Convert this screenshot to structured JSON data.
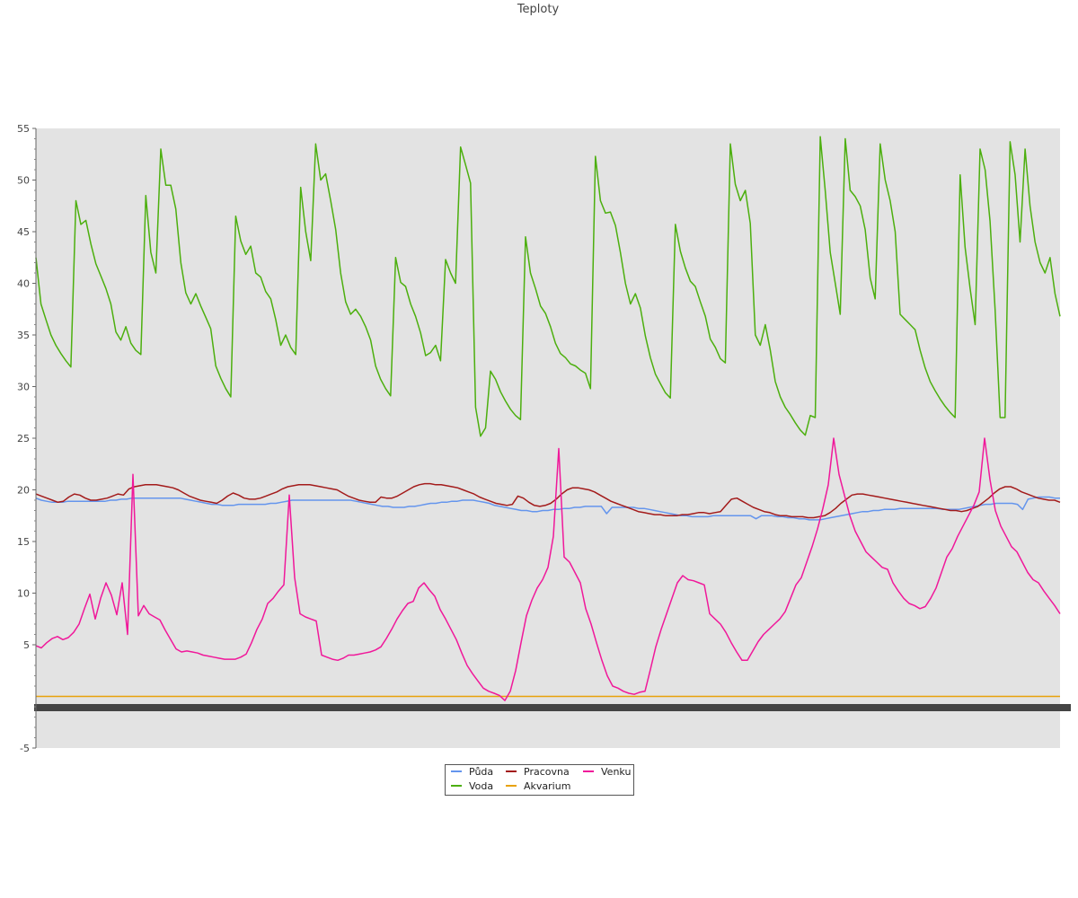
{
  "chart_data": {
    "type": "line",
    "title": "Teploty",
    "xlabel": "",
    "ylabel": "",
    "ylim": [
      -5,
      55
    ],
    "yticks": [
      -5,
      5,
      10,
      15,
      20,
      25,
      30,
      35,
      40,
      45,
      50,
      55
    ],
    "x_count": 200,
    "grid": false,
    "legend_position": "bottom-center",
    "series": [
      {
        "name": "Půda",
        "color": "#6495ed",
        "values": [
          19.2,
          19,
          18.9,
          18.8,
          18.8,
          18.8,
          18.9,
          18.9,
          18.9,
          18.9,
          18.9,
          18.9,
          18.9,
          18.9,
          19,
          19,
          19.1,
          19.1,
          19.2,
          19.2,
          19.2,
          19.2,
          19.2,
          19.2,
          19.2,
          19.2,
          19.2,
          19.2,
          19.1,
          19,
          18.9,
          18.8,
          18.7,
          18.6,
          18.6,
          18.5,
          18.5,
          18.5,
          18.6,
          18.6,
          18.6,
          18.6,
          18.6,
          18.6,
          18.7,
          18.7,
          18.8,
          18.9,
          19,
          19,
          19,
          19,
          19,
          19,
          19,
          19,
          19,
          19,
          19,
          19,
          18.9,
          18.8,
          18.7,
          18.6,
          18.5,
          18.4,
          18.4,
          18.3,
          18.3,
          18.3,
          18.4,
          18.4,
          18.5,
          18.6,
          18.7,
          18.7,
          18.8,
          18.8,
          18.9,
          18.9,
          19,
          19,
          19,
          18.9,
          18.8,
          18.7,
          18.5,
          18.4,
          18.3,
          18.2,
          18.1,
          18,
          18,
          17.9,
          17.9,
          18,
          18,
          18.1,
          18.1,
          18.2,
          18.2,
          18.3,
          18.3,
          18.4,
          18.4,
          18.4,
          18.4,
          17.7,
          18.3,
          18.3,
          18.3,
          18.3,
          18.3,
          18.2,
          18.2,
          18.1,
          18,
          17.9,
          17.8,
          17.7,
          17.6,
          17.5,
          17.5,
          17.4,
          17.4,
          17.4,
          17.4,
          17.5,
          17.5,
          17.5,
          17.5,
          17.5,
          17.5,
          17.5,
          17.5,
          17.2,
          17.5,
          17.5,
          17.5,
          17.4,
          17.4,
          17.3,
          17.3,
          17.2,
          17.2,
          17.1,
          17.1,
          17.1,
          17.2,
          17.3,
          17.4,
          17.5,
          17.6,
          17.7,
          17.8,
          17.9,
          17.9,
          18,
          18,
          18.1,
          18.1,
          18.1,
          18.2,
          18.2,
          18.2,
          18.2,
          18.2,
          18.2,
          18.2,
          18.2,
          18.1,
          18.1,
          18.1,
          18.1,
          18.2,
          18.3,
          18.4,
          18.5,
          18.6,
          18.6,
          18.7,
          18.7,
          18.7,
          18.7,
          18.6,
          18.1,
          19.1,
          19.2,
          19.3,
          19.3,
          19.3,
          19.2,
          19.2
        ]
      },
      {
        "name": "Pracovna",
        "color": "#a31b1b",
        "values": [
          19.6,
          19.4,
          19.2,
          19,
          18.8,
          18.9,
          19.3,
          19.6,
          19.5,
          19.2,
          19,
          19,
          19.1,
          19.2,
          19.4,
          19.6,
          19.5,
          20.1,
          20.3,
          20.4,
          20.5,
          20.5,
          20.5,
          20.4,
          20.3,
          20.2,
          20,
          19.7,
          19.4,
          19.2,
          19,
          18.9,
          18.8,
          18.7,
          19,
          19.4,
          19.7,
          19.5,
          19.2,
          19.1,
          19.1,
          19.2,
          19.4,
          19.6,
          19.8,
          20.1,
          20.3,
          20.4,
          20.5,
          20.5,
          20.5,
          20.4,
          20.3,
          20.2,
          20.1,
          20,
          19.7,
          19.4,
          19.2,
          19,
          18.9,
          18.8,
          18.8,
          19.3,
          19.2,
          19.2,
          19.4,
          19.7,
          20,
          20.3,
          20.5,
          20.6,
          20.6,
          20.5,
          20.5,
          20.4,
          20.3,
          20.2,
          20,
          19.8,
          19.6,
          19.3,
          19.1,
          18.9,
          18.7,
          18.6,
          18.5,
          18.6,
          19.4,
          19.2,
          18.8,
          18.5,
          18.4,
          18.5,
          18.7,
          19.1,
          19.6,
          20,
          20.2,
          20.2,
          20.1,
          20,
          19.8,
          19.5,
          19.2,
          18.9,
          18.7,
          18.5,
          18.3,
          18.1,
          17.9,
          17.8,
          17.7,
          17.6,
          17.6,
          17.5,
          17.5,
          17.5,
          17.6,
          17.6,
          17.7,
          17.8,
          17.8,
          17.7,
          17.8,
          17.9,
          18.5,
          19.1,
          19.2,
          18.9,
          18.6,
          18.3,
          18.1,
          17.9,
          17.8,
          17.6,
          17.5,
          17.5,
          17.4,
          17.4,
          17.4,
          17.3,
          17.3,
          17.4,
          17.5,
          17.8,
          18.2,
          18.7,
          19.1,
          19.5,
          19.6,
          19.6,
          19.5,
          19.4,
          19.3,
          19.2,
          19.1,
          19,
          18.9,
          18.8,
          18.7,
          18.6,
          18.5,
          18.4,
          18.3,
          18.2,
          18.1,
          18,
          18,
          17.9,
          18,
          18.2,
          18.4,
          18.8,
          19.2,
          19.7,
          20.1,
          20.3,
          20.3,
          20.1,
          19.8,
          19.6,
          19.4,
          19.2,
          19.1,
          19,
          19,
          18.8
        ]
      },
      {
        "name": "Venku",
        "color": "#f0189a",
        "values": [
          4.9,
          4.7,
          5.2,
          5.6,
          5.8,
          5.5,
          5.7,
          6.2,
          7,
          8.5,
          9.9,
          7.5,
          9.5,
          11,
          9.8,
          7.9,
          11,
          6,
          21.5,
          7.8,
          8.8,
          8,
          7.7,
          7.4,
          6.4,
          5.5,
          4.6,
          4.3,
          4.4,
          4.3,
          4.2,
          4,
          3.9,
          3.8,
          3.7,
          3.6,
          3.6,
          3.6,
          3.8,
          4.1,
          5.2,
          6.5,
          7.5,
          9,
          9.5,
          10.2,
          10.8,
          19.5,
          11.5,
          8,
          7.7,
          7.5,
          7.3,
          4,
          3.8,
          3.6,
          3.5,
          3.7,
          4,
          4,
          4.1,
          4.2,
          4.3,
          4.5,
          4.8,
          5.6,
          6.5,
          7.5,
          8.3,
          9,
          9.2,
          10.5,
          11,
          10.3,
          9.7,
          8.4,
          7.5,
          6.5,
          5.5,
          4.2,
          3,
          2.2,
          1.5,
          0.8,
          0.5,
          0.3,
          0.1,
          -0.4,
          0.5,
          2.5,
          5.2,
          7.8,
          9.3,
          10.5,
          11.3,
          12.5,
          15.5,
          24,
          13.5,
          13,
          12,
          11,
          8.5,
          7,
          5.2,
          3.5,
          2,
          1,
          0.8,
          0.5,
          0.3,
          0.2,
          0.4,
          0.5,
          2.6,
          4.8,
          6.5,
          8,
          9.5,
          11,
          11.7,
          11.3,
          11.2,
          11,
          10.8,
          8,
          7.5,
          7,
          6.2,
          5.2,
          4.3,
          3.5,
          3.5,
          4.4,
          5.3,
          6,
          6.5,
          7,
          7.5,
          8.2,
          9.5,
          10.8,
          11.5,
          13,
          14.5,
          16.2,
          18.2,
          20.5,
          25,
          21.5,
          19.5,
          17.5,
          16,
          15,
          14,
          13.5,
          13,
          12.5,
          12.3,
          11,
          10.2,
          9.5,
          9,
          8.8,
          8.5,
          8.7,
          9.5,
          10.5,
          12,
          13.5,
          14.3,
          15.5,
          16.5,
          17.5,
          18.5,
          19.8,
          25,
          21,
          18,
          16.5,
          15.5,
          14.5,
          14,
          13,
          12,
          11.3,
          11,
          10.2,
          9.5,
          8.8,
          8
        ]
      },
      {
        "name": "Voda",
        "color": "#4caf0e",
        "values": [
          42.5,
          38,
          36.5,
          35,
          34,
          33.2,
          32.5,
          31.9,
          48,
          45.7,
          46.1,
          43.8,
          41.9,
          40.7,
          39.5,
          38,
          35.3,
          34.5,
          35.8,
          34.2,
          33.5,
          33.1,
          48.5,
          43,
          41,
          53,
          49.5,
          49.5,
          47.2,
          42,
          39.1,
          38,
          39,
          37.8,
          36.7,
          35.6,
          32,
          30.8,
          29.8,
          29,
          46.5,
          44.1,
          42.8,
          43.6,
          41,
          40.6,
          39.2,
          38.5,
          36.5,
          34,
          35,
          33.8,
          33.1,
          49.3,
          45,
          42.2,
          53.5,
          50,
          50.6,
          48,
          45.2,
          41,
          38.2,
          37,
          37.5,
          36.8,
          35.8,
          34.5,
          32,
          30.7,
          29.8,
          29.1,
          42.5,
          40.1,
          39.7,
          38,
          36.8,
          35.2,
          33,
          33.3,
          34,
          32.5,
          42.3,
          41,
          40,
          53.2,
          51.5,
          49.7,
          28,
          25.2,
          26,
          31.5,
          30.7,
          29.5,
          28.6,
          27.8,
          27.2,
          26.8,
          44.5,
          41,
          39.5,
          37.8,
          37.1,
          35.8,
          34.2,
          33.2,
          32.8,
          32.2,
          32,
          31.6,
          31.3,
          29.8,
          52.3,
          48,
          46.8,
          46.9,
          45.6,
          43,
          40,
          38,
          39,
          37.6,
          34.9,
          32.8,
          31.2,
          30.3,
          29.4,
          28.9,
          45.7,
          43.1,
          41.5,
          40.2,
          39.7,
          38.2,
          36.8,
          34.6,
          33.8,
          32.7,
          32.3,
          53.5,
          49.6,
          48,
          49,
          45.8,
          35,
          34,
          36,
          33.5,
          30.5,
          29,
          28,
          27.3,
          26.5,
          25.8,
          25.3,
          27.2,
          27,
          54.2,
          49,
          43,
          40,
          37,
          54,
          49,
          48.4,
          47.5,
          45.2,
          40.5,
          38.5,
          53.5,
          50,
          48,
          45,
          37,
          36.5,
          36,
          35.5,
          33.5,
          31.8,
          30.5,
          29.6,
          28.8,
          28.1,
          27.5,
          27,
          50.5,
          43.5,
          39.5,
          36,
          53,
          51,
          46,
          37.5,
          27,
          27,
          53.7,
          50.5,
          44,
          53,
          47.5,
          44,
          42,
          41,
          42.5,
          39,
          36.8
        ]
      },
      {
        "name": "Akvarium",
        "color": "#e8a20a",
        "values": [
          0,
          0,
          0,
          0,
          0,
          0,
          0,
          0,
          0,
          0,
          0,
          0,
          0,
          0,
          0,
          0,
          0,
          0,
          0,
          0,
          0,
          0,
          0,
          0,
          0,
          0,
          0,
          0,
          0,
          0,
          0,
          0,
          0,
          0,
          0,
          0,
          0,
          0,
          0,
          0,
          0,
          0,
          0,
          0,
          0,
          0,
          0,
          0,
          0,
          0,
          0,
          0,
          0,
          0,
          0,
          0,
          0,
          0,
          0,
          0,
          0,
          0,
          0,
          0,
          0,
          0,
          0,
          0,
          0,
          0,
          0,
          0,
          0,
          0,
          0,
          0,
          0,
          0,
          0,
          0,
          0,
          0,
          0,
          0,
          0,
          0,
          0,
          0,
          0,
          0,
          0,
          0,
          0,
          0,
          0,
          0,
          0,
          0,
          0,
          0,
          0,
          0,
          0,
          0,
          0,
          0,
          0,
          0,
          0,
          0,
          0,
          0,
          0,
          0,
          0,
          0,
          0,
          0,
          0,
          0,
          0,
          0,
          0,
          0,
          0,
          0,
          0,
          0,
          0,
          0,
          0,
          0,
          0,
          0,
          0,
          0,
          0,
          0,
          0,
          0,
          0,
          0,
          0,
          0,
          0,
          0,
          0,
          0,
          0,
          0,
          0,
          0,
          0,
          0,
          0,
          0,
          0,
          0,
          0,
          0,
          0,
          0,
          0,
          0,
          0,
          0,
          0,
          0,
          0,
          0,
          0,
          0,
          0,
          0,
          0,
          0,
          0,
          0,
          0,
          0,
          0,
          0,
          0,
          0,
          0,
          0,
          0,
          0,
          0,
          0,
          0,
          0,
          0,
          0,
          0,
          0,
          0,
          0,
          0,
          0
        ]
      }
    ],
    "legend": [
      {
        "name": "Půda",
        "color": "#6495ed"
      },
      {
        "name": "Pracovna",
        "color": "#a31b1b"
      },
      {
        "name": "Venku",
        "color": "#f0189a"
      },
      {
        "name": "Voda",
        "color": "#4caf0e"
      },
      {
        "name": "Akvarium",
        "color": "#e8a20a"
      }
    ],
    "plot_background": "#e3e3e3",
    "x_axis_band_color": "#444444"
  }
}
